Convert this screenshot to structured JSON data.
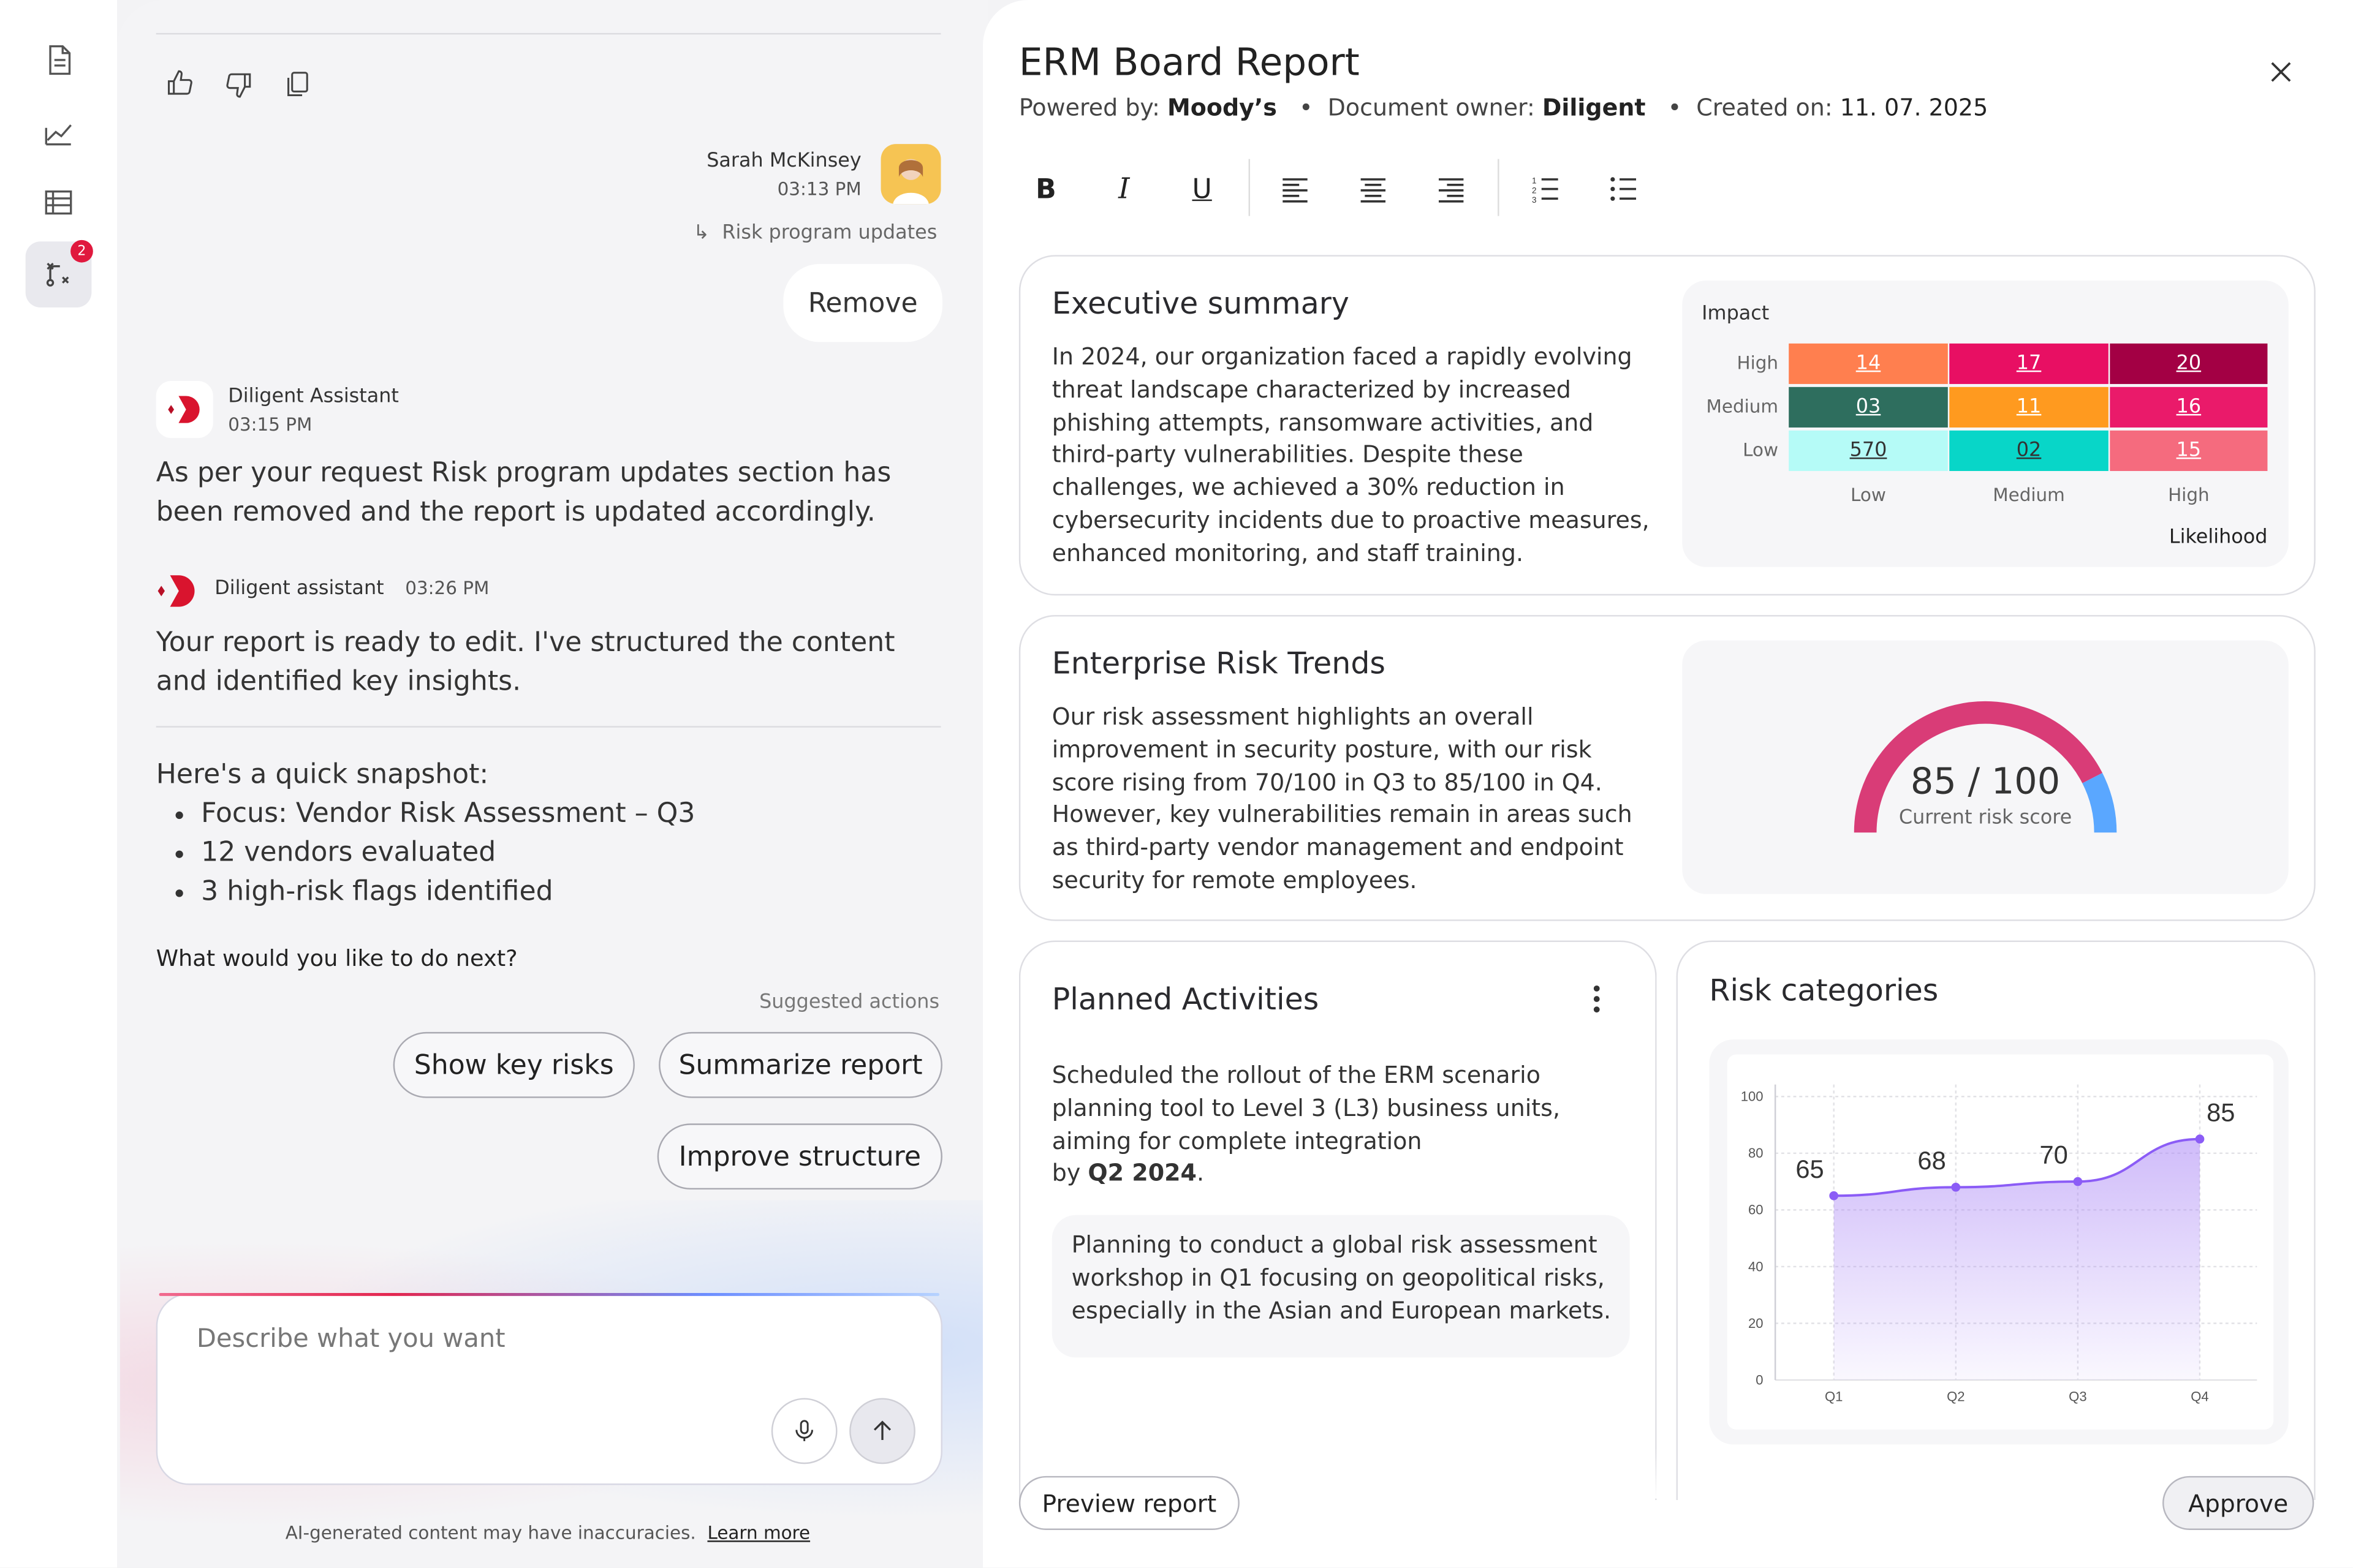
{
  "rail": {
    "items": [
      {
        "icon": "document-icon"
      },
      {
        "icon": "chart-icon"
      },
      {
        "icon": "table-icon"
      },
      {
        "icon": "workflow-icon",
        "badge": "2",
        "active": true
      }
    ]
  },
  "chat": {
    "user_message": {
      "name": "Sarah McKinsey",
      "time": "03:13 PM",
      "reply_ref": "Risk program updates",
      "text": "Remove"
    },
    "assistant_1": {
      "name": "Diligent Assistant",
      "time": "03:15 PM",
      "text": "As per your request Risk program updates section has been removed and the report is updated accordingly."
    },
    "assistant_2": {
      "name": "Diligent assistant",
      "time": "03:26 PM",
      "text": "Your report is ready to edit. I've structured the content and identified key insights."
    },
    "snapshot": {
      "intro": "Here's a quick snapshot:",
      "items": [
        "Focus: Vendor Risk Assessment – Q3",
        "12 vendors evaluated",
        "3 high-risk flags identified"
      ]
    },
    "question": "What would you like to do next?",
    "suggested_label": "Suggested actions",
    "actions": [
      "Show key risks",
      "Summarize report",
      "Improve structure"
    ],
    "input_placeholder": "Describe what you want",
    "disclaimer": "AI-generated content may have inaccuracies.",
    "learn_more": "Learn more"
  },
  "report": {
    "title": "ERM Board Report",
    "powered_by_label": "Powered by:",
    "powered_by": "Moody’s",
    "owner_label": "Document owner:",
    "owner": "Diligent",
    "created_label": "Created on:",
    "created": "11. 07. 2025",
    "toolbar": [
      "B",
      "I",
      "U"
    ],
    "exec": {
      "title": "Executive summary",
      "text": "In 2024, our organization faced a rapidly evolving threat landscape characterized by increased phishing attempts, ransomware activities, and third-party vulnerabilities. Despite these challenges, we achieved a 30% reduction in cybersecurity incidents due to proactive measures, enhanced monitoring, and staff training.",
      "heatmap": {
        "y_title": "Impact",
        "x_title": "Likelihood",
        "rows": [
          "High",
          "Medium",
          "Low"
        ],
        "cols": [
          "Low",
          "Medium",
          "High"
        ],
        "values": [
          [
            "14",
            "17",
            "20"
          ],
          [
            "03",
            "11",
            "16"
          ],
          [
            "570",
            "02",
            "15"
          ]
        ],
        "colors": [
          [
            "#ff7f4f",
            "#e80f63",
            "#a30044"
          ],
          [
            "#2e6e5e",
            "#ff9a1f",
            "#ea1a6a"
          ],
          [
            "#b5fbf7",
            "#08d6c8",
            "#f56b7e"
          ]
        ],
        "text_colors": [
          [
            "#ffffff",
            "#ffffff",
            "#ffffff"
          ],
          [
            "#ffffff",
            "#ffffff",
            "#ffffff"
          ],
          [
            "#333333",
            "#333333",
            "#ffffff"
          ]
        ]
      }
    },
    "trends": {
      "title": "Enterprise Risk Trends",
      "text": "Our risk assessment highlights an overall improvement in security posture, with our risk score rising from 70/100 in Q3 to 85/100 in Q4. However, key vulnerabilities remain in areas such as third-party vendor management and endpoint security for remote employees.",
      "gauge": {
        "score": "85",
        "max": "100",
        "label": "Current risk score",
        "fraction": 0.85,
        "color_main": "#d93c77",
        "color_rest": "#5aa7ff"
      }
    },
    "planned": {
      "title": "Planned Activities",
      "text": "Scheduled the rollout of the ERM scenario planning tool to Level 3 (L3) business units, aiming for complete integration",
      "by_prefix": "by",
      "by_value": "Q2 2024",
      "by_suffix": ".",
      "note": "Planning to conduct a global risk assessment workshop in Q1 focusing on geopolitical risks, especially in the Asian and European markets."
    },
    "categories": {
      "title": "Risk categories"
    },
    "preview_button": "Preview report",
    "approve_button": "Approve"
  },
  "chart_data": {
    "type": "area",
    "categories": [
      "Q1",
      "Q2",
      "Q3",
      "Q4"
    ],
    "values": [
      65,
      68,
      70,
      85
    ],
    "ylim": [
      0,
      100
    ],
    "yticks": [
      0,
      20,
      40,
      60,
      80,
      100
    ],
    "grid": true,
    "color": "#8b5cf6"
  }
}
